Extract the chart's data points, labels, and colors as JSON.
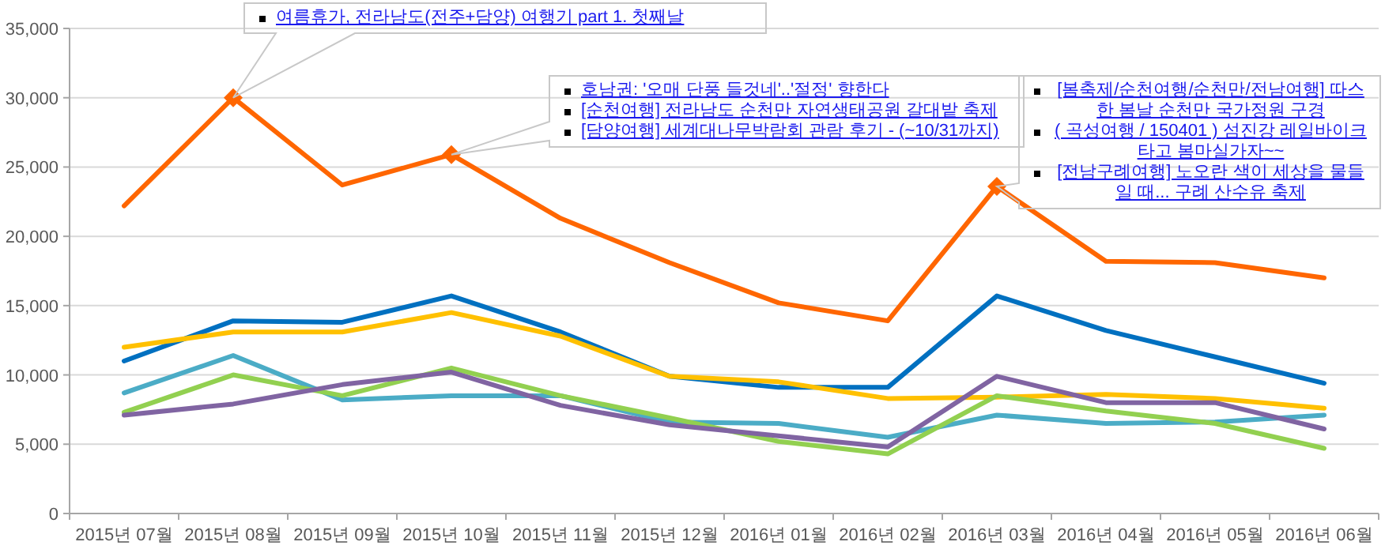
{
  "chart_data": {
    "type": "line",
    "categories": [
      "2015년 07월",
      "2015년 08월",
      "2015년 09월",
      "2015년 10월",
      "2015년 11월",
      "2015년 12월",
      "2016년 01월",
      "2016년 02월",
      "2016년 03월",
      "2016년 04월",
      "2016년 05월",
      "2016년 06월"
    ],
    "series": [
      {
        "color": "#ff6600",
        "values": [
          22200,
          30000,
          23700,
          25900,
          21300,
          18100,
          15200,
          13900,
          23600,
          18200,
          18100,
          17000
        ]
      },
      {
        "color": "#0070c0",
        "values": [
          11000,
          13900,
          13800,
          15700,
          13100,
          9900,
          9100,
          9100,
          15700,
          13200,
          11300,
          9400
        ]
      },
      {
        "color": "#ffc000",
        "values": [
          12000,
          13100,
          13100,
          14500,
          12800,
          9900,
          9500,
          8300,
          8400,
          8600,
          8300,
          7600
        ]
      },
      {
        "color": "#4bacc6",
        "values": [
          8700,
          11400,
          8200,
          8500,
          8500,
          6600,
          6500,
          5500,
          7100,
          6500,
          6600,
          7100
        ]
      },
      {
        "color": "#92d050",
        "values": [
          7300,
          10000,
          8500,
          10500,
          8500,
          6900,
          5200,
          4300,
          8500,
          7400,
          6500,
          4700
        ]
      },
      {
        "color": "#8064a2",
        "values": [
          7100,
          7900,
          9300,
          10200,
          7800,
          6400,
          5600,
          4800,
          9900,
          8000,
          8000,
          6100
        ]
      },
      {
        "type": "scatter",
        "marker": "diamond",
        "color": "#ff6600",
        "values": [
          null,
          30000,
          null,
          25900,
          null,
          null,
          null,
          null,
          23600,
          null,
          null,
          null
        ]
      }
    ],
    "ylim": [
      0,
      35000
    ],
    "yticks": [
      0,
      {
        "value": 5000,
        "label": "5,000"
      },
      {
        "value": 10000,
        "label": "10,000"
      },
      {
        "value": 15000,
        "label": "15,000"
      },
      {
        "value": 20000,
        "label": "20,000"
      },
      {
        "value": 25000,
        "label": "25,000"
      },
      {
        "value": 30000,
        "label": "30,000"
      },
      {
        "value": 35000,
        "label": "35,000"
      }
    ],
    "grid": "y",
    "annotations": [
      "여름휴가, 전라남도(전주+담양) 여행기 part 1. 첫째날",
      "호남권: '오매 단풍 들것네'..'절정' 향한다\n[순천여행] 전라남도 순천만 자연생태공원 갈대밭 축제\n[담양여행] 세계대나무박람회 관람 후기 - (~10/31까지)",
      "[봄축제/순천여행/순천만/전남여행] 따스한 봄날 순천만 국가정원 구경\n( 곡성여행 / 150401 ) 섬진강 레일바이크타고 봄마실가자~~\n[전남구례여행] 노오란 색이 세상을 물들일 때... 구례 산수유 축제"
    ]
  }
}
